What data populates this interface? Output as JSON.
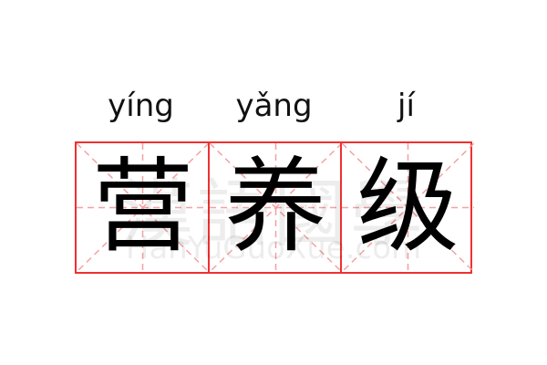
{
  "entries": [
    {
      "pinyin": "yíng",
      "char": "营"
    },
    {
      "pinyin": "yǎng",
      "char": "养"
    },
    {
      "pinyin": "jí",
      "char": "级"
    }
  ],
  "watermark": {
    "logo": "漢語國學",
    "site": "HanYuGuoXue.com"
  },
  "colors": {
    "border": "#f03030",
    "guide": "#f5a0a0"
  }
}
